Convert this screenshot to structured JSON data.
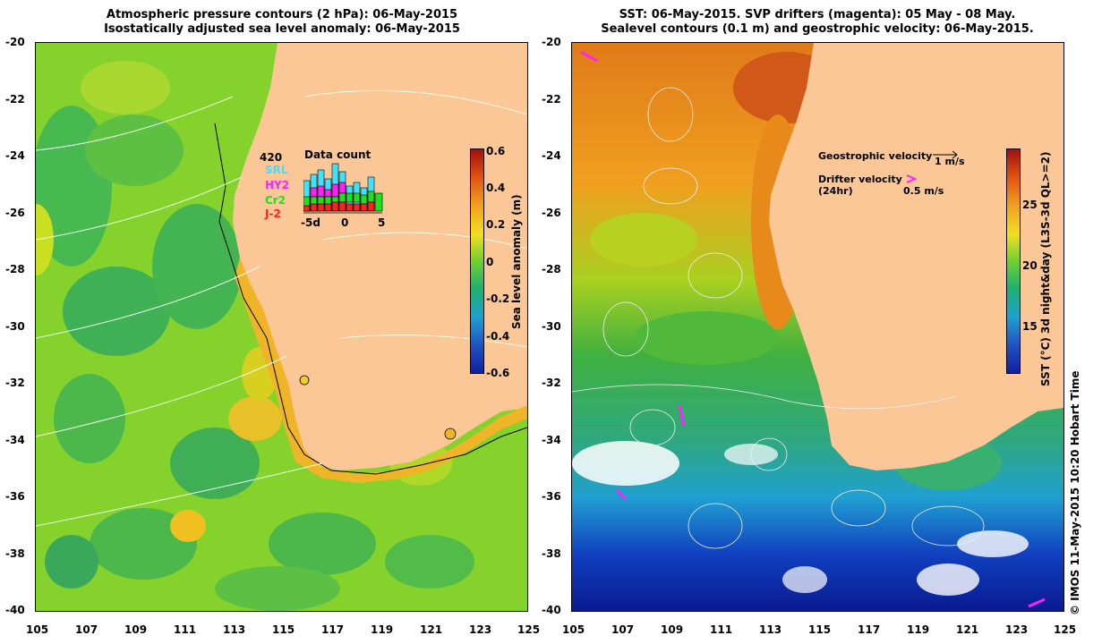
{
  "left_panel": {
    "title_line1": "Atmospheric pressure contours (2 hPa): 06-May-2015",
    "title_line2": "Isostatically adjusted sea level anomaly: 06-May-2015",
    "colorbar_label": "Sea level anomaly (m)",
    "colorbar_ticks": [
      "0.6",
      "0.4",
      "0.2",
      "0",
      "-0.2",
      "-0.4",
      "-0.6"
    ],
    "inset": {
      "title": "Data count",
      "max_label": "420",
      "satellites": [
        {
          "name": "SRL",
          "color": "#40e0ff"
        },
        {
          "name": "HY2",
          "color": "#ff20ff"
        },
        {
          "name": "Cr2",
          "color": "#20e020"
        },
        {
          "name": "J-2",
          "color": "#ff2020"
        }
      ],
      "x_ticks": [
        "-5d",
        "0",
        "5"
      ]
    }
  },
  "right_panel": {
    "title_line1": "SST: 06-May-2015. SVP drifters (magenta): 05 May - 08 May.",
    "title_line2": "Sealevel contours (0.1 m) and geostrophic velocity: 06-May-2015.",
    "colorbar_label": "SST (°C) 3d night&day (L3S-3d QL>=2)",
    "colorbar_ticks": [
      "25",
      "20",
      "15"
    ],
    "legend_geo": "Geostrophic velocity",
    "legend_geo_scale": "1 m/s",
    "legend_drifter": "Drifter velocity",
    "legend_drifter_sub": "(24hr)",
    "legend_drifter_scale": "0.5 m/s",
    "credit": "© IMOS 11-May-2015 10:20 Hobart Time"
  },
  "axes": {
    "lat_ticks": [
      "-20",
      "-22",
      "-24",
      "-26",
      "-28",
      "-30",
      "-32",
      "-34",
      "-36",
      "-38",
      "-40"
    ],
    "lon_ticks": [
      "105",
      "107",
      "109",
      "111",
      "113",
      "115",
      "117",
      "119",
      "121",
      "123",
      "125"
    ]
  },
  "colors": {
    "land": "#fbc797",
    "ssla_base": "#7ed02a",
    "sst_warm": "#e88a1a"
  }
}
